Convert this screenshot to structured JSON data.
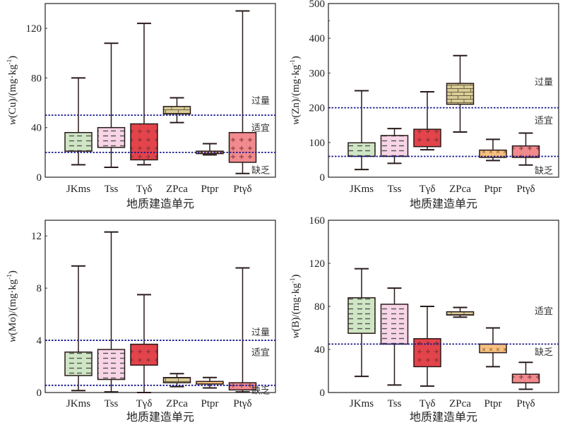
{
  "chart_data": [
    {
      "type": "box",
      "ylabel_var": "w",
      "ylabel_elem": "(Cu)",
      "ylabel_unit": "/(mg·kg",
      "ylabel_sup": "-1",
      "ylabel_close": ")",
      "xlabel": "地质建造单元",
      "ylim": [
        0,
        140
      ],
      "yticks": [
        0,
        40,
        80,
        120
      ],
      "minor_yticks": [],
      "categories": [
        "JKms",
        "Tss",
        "Tγδ",
        "ZPca",
        "Ptpr",
        "Ptγδ"
      ],
      "boxes": [
        {
          "min": 10,
          "q1": 21,
          "q3": 36,
          "max": 80
        },
        {
          "min": 8,
          "q1": 24,
          "q3": 40,
          "max": 108
        },
        {
          "min": 10,
          "q1": 14,
          "q3": 43,
          "max": 124
        },
        {
          "min": 44,
          "q1": 51,
          "q3": 57,
          "max": 64
        },
        {
          "min": 18,
          "q1": 19,
          "q3": 21,
          "max": 27
        },
        {
          "min": 3,
          "q1": 12,
          "q3": 36,
          "max": 134
        }
      ],
      "thresholds": [
        50,
        20
      ],
      "annotations": [
        {
          "text": "过量",
          "y": 62
        },
        {
          "text": "适宜",
          "y": 40
        },
        {
          "text": "缺乏",
          "y": 6
        }
      ]
    },
    {
      "type": "box",
      "ylabel_var": "w",
      "ylabel_elem": "(Zn)",
      "ylabel_unit": "/(mg·kg",
      "ylabel_sup": "-1",
      "ylabel_close": ")",
      "xlabel": "地质建造单元",
      "ylim": [
        0,
        500
      ],
      "yticks": [
        0,
        100,
        200,
        300,
        400,
        500
      ],
      "minor_yticks": [
        450
      ],
      "categories": [
        "JKms",
        "Tss",
        "Tγδ",
        "ZPca",
        "Ptpr",
        "Ptγδ"
      ],
      "boxes": [
        {
          "min": 22,
          "q1": 60,
          "q3": 99,
          "max": 249
        },
        {
          "min": 40,
          "q1": 60,
          "q3": 120,
          "max": 140
        },
        {
          "min": 79,
          "q1": 88,
          "q3": 138,
          "max": 246
        },
        {
          "min": 130,
          "q1": 210,
          "q3": 270,
          "max": 350
        },
        {
          "min": 48,
          "q1": 57,
          "q3": 78,
          "max": 109
        },
        {
          "min": 35,
          "q1": 57,
          "q3": 90,
          "max": 127
        }
      ],
      "thresholds": [
        200,
        60
      ],
      "annotations": [
        {
          "text": "过量",
          "y": 275
        },
        {
          "text": "适宜",
          "y": 165
        },
        {
          "text": "缺乏",
          "y": 20
        }
      ]
    },
    {
      "type": "box",
      "ylabel_var": "w",
      "ylabel_elem": "(Mo)",
      "ylabel_unit": "/(mg·kg",
      "ylabel_sup": "-1",
      "ylabel_close": ")",
      "xlabel": "地质建造单元",
      "ylim": [
        0,
        13.2
      ],
      "yticks": [
        0,
        4,
        8,
        12
      ],
      "minor_yticks": [],
      "categories": [
        "JKms",
        "Tss",
        "Tγδ",
        "ZPca",
        "Ptpr",
        "Ptγδ"
      ],
      "boxes": [
        {
          "min": 0.15,
          "q1": 1.3,
          "q3": 3.1,
          "max": 9.7
        },
        {
          "min": 0.05,
          "q1": 1.0,
          "q3": 3.3,
          "max": 12.3
        },
        {
          "min": 0,
          "q1": 2.1,
          "q3": 3.7,
          "max": 7.5
        },
        {
          "min": 0.45,
          "q1": 0.75,
          "q3": 1.15,
          "max": 1.45
        },
        {
          "min": 0.35,
          "q1": 0.65,
          "q3": 0.85,
          "max": 1.15
        },
        {
          "min": 0.05,
          "q1": 0.2,
          "q3": 0.75,
          "max": 9.55
        }
      ],
      "thresholds": [
        4,
        0.55
      ],
      "annotations": [
        {
          "text": "过量",
          "y": 4.65
        },
        {
          "text": "适宜",
          "y": 3.1
        },
        {
          "text": "缺乏",
          "y": 0.2
        }
      ]
    },
    {
      "type": "box",
      "ylabel_var": "w",
      "ylabel_elem": "(B)",
      "ylabel_unit": "/(mg·kg",
      "ylabel_sup": "-1",
      "ylabel_close": ")",
      "xlabel": "地质建造单元",
      "ylim": [
        0,
        160
      ],
      "yticks": [
        0,
        40,
        80,
        120,
        160
      ],
      "minor_yticks": [],
      "categories": [
        "JKms",
        "Tss",
        "Tγδ",
        "ZPca",
        "Ptpr",
        "Ptγδ"
      ],
      "boxes": [
        {
          "min": 15,
          "q1": 55,
          "q3": 88,
          "max": 115
        },
        {
          "min": 7,
          "q1": 45,
          "q3": 82,
          "max": 97
        },
        {
          "min": 6,
          "q1": 24,
          "q3": 50,
          "max": 80
        },
        {
          "min": 70,
          "q1": 72,
          "q3": 75,
          "max": 79
        },
        {
          "min": 24,
          "q1": 37,
          "q3": 45,
          "max": 60
        },
        {
          "min": 3,
          "q1": 9,
          "q3": 17,
          "max": 28
        }
      ],
      "thresholds": [
        45
      ],
      "annotations": [
        {
          "text": "适宜",
          "y": 76
        },
        {
          "text": "缺乏",
          "y": 38
        }
      ]
    }
  ],
  "styles": {
    "fills": [
      "#cfe6c4",
      "#f7d4e6",
      "#e3434a",
      "#d9cd98",
      "#f7c07e",
      "#f08a8e"
    ],
    "patterns": [
      "dash",
      "dash",
      "plus",
      "brick",
      "cross",
      "plus"
    ],
    "threshold_color": "#1a1a8c",
    "axis_color": "#333333",
    "whisker_color": "#2a1a1a"
  }
}
